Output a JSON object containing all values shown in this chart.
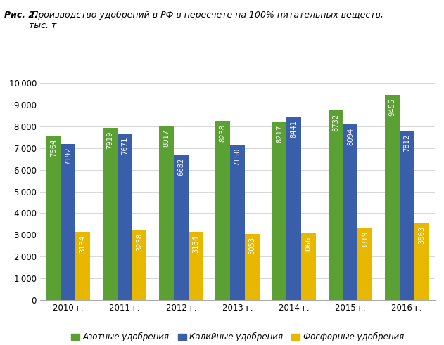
{
  "title_bold": "Рис. 2.",
  "title_rest": " Производство удобрений в РФ в пересчете на 100% питательных веществ,\nтыс. т",
  "years": [
    "2010 г.",
    "2011 г.",
    "2012 г.",
    "2013 г.",
    "2014 г.",
    "2015 г.",
    "2016 г."
  ],
  "azot": [
    7564,
    7919,
    8017,
    8238,
    8217,
    8732,
    9455
  ],
  "kaliy": [
    7192,
    7671,
    6682,
    7150,
    8441,
    8094,
    7812
  ],
  "fosfor": [
    3134,
    3238,
    3134,
    3053,
    3066,
    3319,
    3563
  ],
  "azot_color": "#5aA032",
  "kaliy_color": "#3a5faa",
  "fosfor_color": "#e8b800",
  "bar_width": 0.26,
  "ylim": [
    0,
    10000
  ],
  "yticks": [
    0,
    1000,
    2000,
    3000,
    4000,
    5000,
    6000,
    7000,
    8000,
    9000,
    10000
  ],
  "legend_azot": "Азотные удобрения",
  "legend_kaliy": "Калийные удобрения",
  "legend_fosfor": "Фосфорные удобрения",
  "label_color": "#ffffff",
  "label_fontsize": 7.2,
  "axis_fontsize": 8.5,
  "grid_color": "#d0d0d0",
  "bg_color": "#ffffff"
}
